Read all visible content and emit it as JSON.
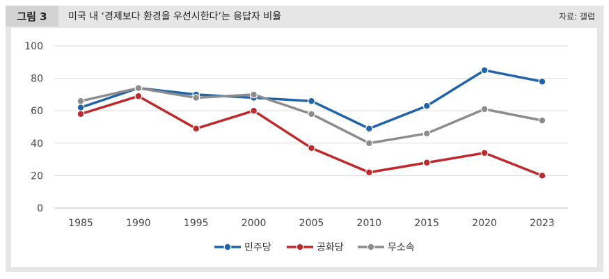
{
  "header": {
    "figure_label": "그림 3",
    "title": "미국 내 ‘경제보다 환경을 우선시한다’는 응답자 비율",
    "source": "자료: 갤럽"
  },
  "chart_data": {
    "type": "line",
    "title": "미국 내 ‘경제보다 환경을 우선시한다’는 응답자 비율",
    "x": [
      "1985",
      "1990",
      "1995",
      "2000",
      "2005",
      "2010",
      "2015",
      "2020",
      "2023"
    ],
    "series": [
      {
        "name": "민주당",
        "color": "#1f63a8",
        "values": [
          62,
          74,
          70,
          68,
          66,
          49,
          63,
          85,
          78
        ]
      },
      {
        "name": "공화당",
        "color": "#c0292b",
        "values": [
          58,
          69,
          49,
          60,
          37,
          22,
          28,
          34,
          20
        ]
      },
      {
        "name": "무소속",
        "color": "#8c8c8c",
        "values": [
          66,
          74,
          68,
          70,
          58,
          40,
          46,
          61,
          54
        ]
      }
    ],
    "ylim": [
      0,
      100
    ],
    "yticks": [
      0,
      20,
      40,
      60,
      80,
      100
    ],
    "grid": true,
    "legend_position": "bottom-center"
  }
}
